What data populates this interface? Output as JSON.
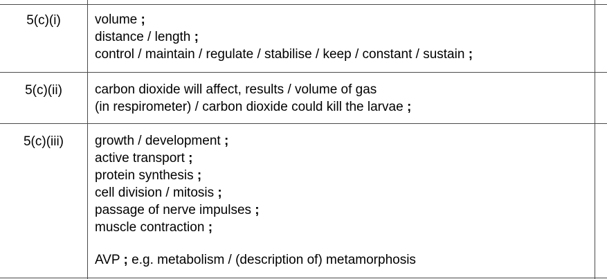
{
  "rows": [
    {
      "question": "5(c)(i)",
      "answers": [
        "volume ;",
        "distance / length ;",
        "control / maintain / regulate / stabilise / keep / constant / sustain ;"
      ]
    },
    {
      "question": "5(c)(ii)",
      "answers": [
        "carbon dioxide will affect, results / volume of gas",
        "(in respirometer) / carbon dioxide could kill the larvae ;"
      ]
    },
    {
      "question": "5(c)(iii)",
      "answers": [
        "growth / development ;",
        "active transport ;",
        "protein synthesis ;",
        "cell division / mitosis ;",
        "passage of nerve impulses ;",
        "muscle contraction ;"
      ],
      "extra": "AVP ; e.g. metabolism / (description of) metamorphosis"
    }
  ]
}
